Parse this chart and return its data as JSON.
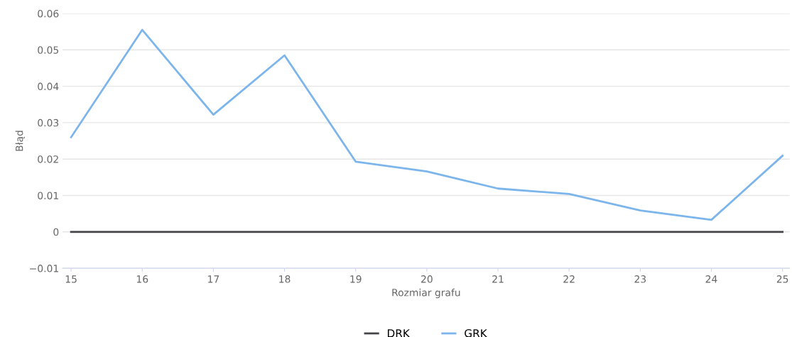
{
  "chart_data": {
    "type": "line",
    "xlabel": "Rozmiar grafu",
    "ylabel": "Błąd",
    "x": [
      15,
      16,
      17,
      18,
      19,
      20,
      21,
      22,
      23,
      24,
      25
    ],
    "series": [
      {
        "name": "DRK",
        "color": "#434348",
        "values": [
          0,
          0,
          0,
          0,
          0,
          0,
          0,
          0,
          0,
          0,
          0
        ]
      },
      {
        "name": "GRK",
        "color": "#7cb5ec",
        "values": [
          0.026,
          0.0555,
          0.0322,
          0.0485,
          0.0193,
          0.0166,
          0.0119,
          0.0104,
          0.0059,
          0.0033,
          0.0209
        ]
      }
    ],
    "xlim": [
      14.88,
      25.1
    ],
    "xticks": [
      15,
      16,
      17,
      18,
      19,
      20,
      21,
      22,
      23,
      24,
      25
    ],
    "ylim": [
      -0.01,
      0.06
    ],
    "yticks": [
      {
        "value": -0.01,
        "label": "−0.01"
      },
      0,
      0.01,
      0.02,
      0.03,
      0.04,
      0.05,
      0.06
    ],
    "grid": "y",
    "legend": "bottom",
    "marker": "none",
    "line_style": "solid"
  }
}
